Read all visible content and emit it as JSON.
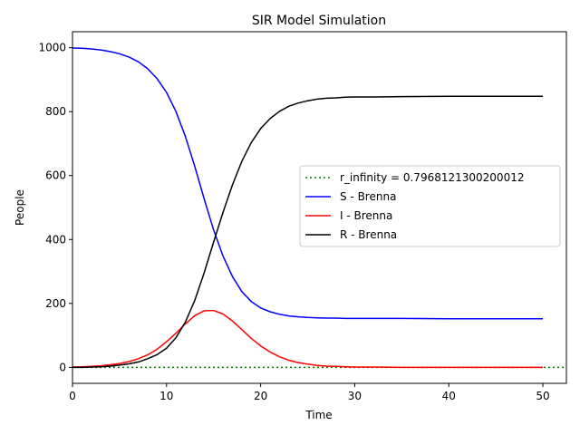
{
  "chart_data": {
    "type": "line",
    "title": "SIR Model Simulation",
    "xlabel": "Time",
    "ylabel": "People",
    "xlim": [
      0,
      52.5
    ],
    "ylim": [
      -50,
      1050
    ],
    "xticks": [
      0,
      10,
      20,
      30,
      40,
      50
    ],
    "yticks": [
      0,
      200,
      400,
      600,
      800,
      1000
    ],
    "grid": false,
    "legend_position": "center-right",
    "x": [
      0,
      1,
      2,
      3,
      4,
      5,
      6,
      7,
      8,
      9,
      10,
      11,
      12,
      13,
      14,
      15,
      16,
      17,
      18,
      19,
      20,
      21,
      22,
      23,
      24,
      25,
      26,
      27,
      28,
      29,
      30,
      32,
      35,
      40,
      45,
      50
    ],
    "series": [
      {
        "name": "S - Brenna",
        "color": "#0000ff",
        "style": "solid",
        "values": [
          999,
          998,
          996,
          993,
          988,
          981,
          971,
          956,
          934,
          903,
          860,
          800,
          722,
          628,
          527,
          430,
          348,
          284,
          237,
          206,
          186,
          174,
          166,
          161,
          158,
          156,
          155,
          154,
          154,
          153,
          153,
          153,
          153,
          152,
          152,
          152
        ]
      },
      {
        "name": "I - Brenna",
        "color": "#ff0000",
        "style": "solid",
        "values": [
          1,
          2,
          3,
          5,
          8,
          12,
          18,
          27,
          39,
          57,
          80,
          107,
          136,
          162,
          177,
          178,
          167,
          145,
          118,
          91,
          67,
          48,
          33,
          22,
          15,
          10,
          6,
          4,
          3,
          2,
          1,
          1,
          0,
          0,
          0,
          0
        ]
      },
      {
        "name": "R - Brenna",
        "color": "#000000",
        "style": "solid",
        "values": [
          0,
          0,
          1,
          2,
          4,
          7,
          11,
          17,
          27,
          40,
          60,
          93,
          142,
          210,
          296,
          392,
          485,
          571,
          645,
          703,
          747,
          778,
          801,
          817,
          827,
          834,
          839,
          842,
          843,
          845,
          846,
          846,
          847,
          848,
          848,
          848
        ]
      }
    ],
    "reference_lines": [
      {
        "name": "r_infinity = 0.7968121300200012",
        "color": "#008000",
        "style": "dotted",
        "y": 0
      }
    ]
  }
}
